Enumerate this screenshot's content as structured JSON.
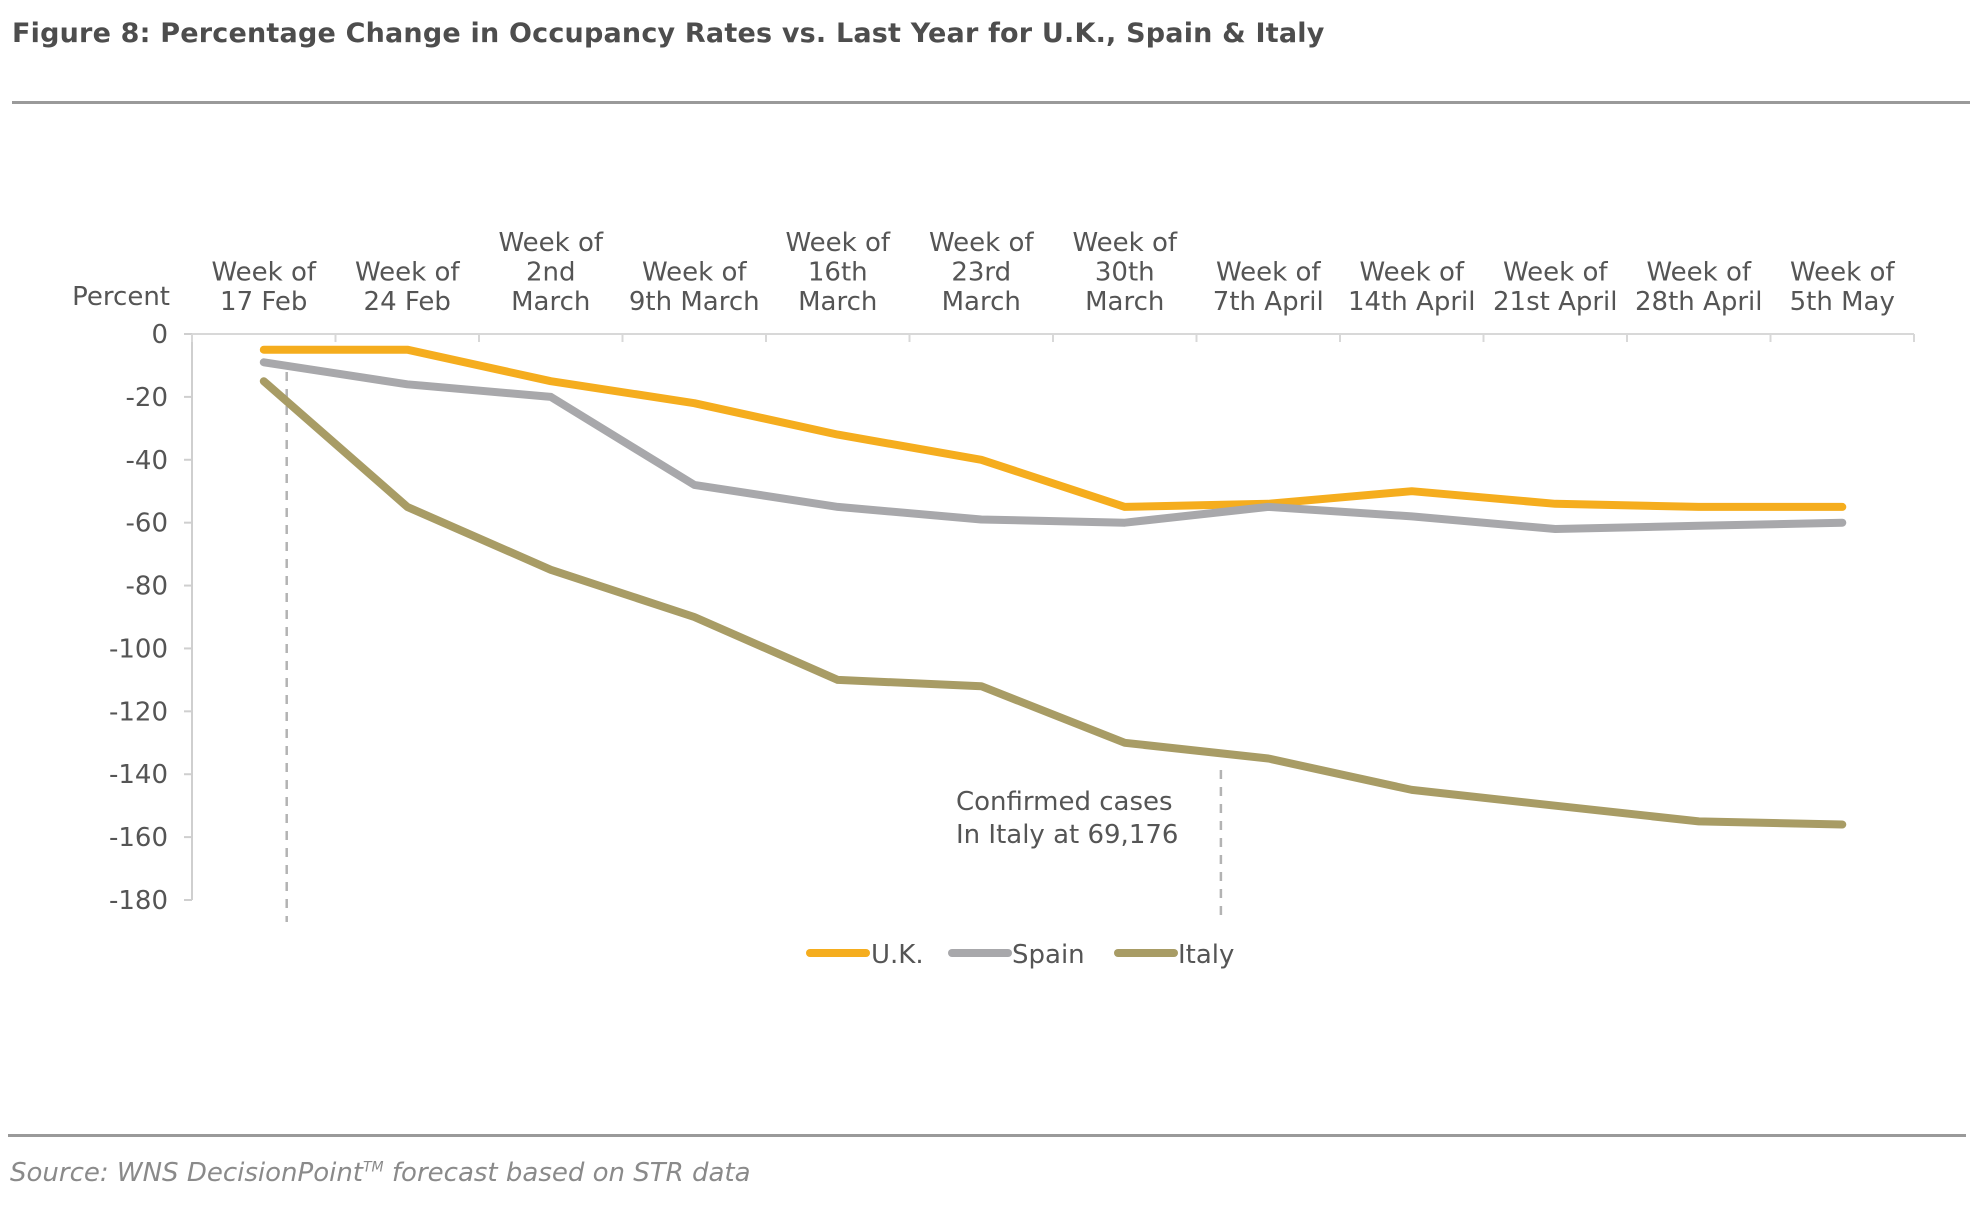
{
  "figure": {
    "title": "Figure 8: Percentage Change in Occupancy Rates vs. Last Year for U.K., Spain & Italy",
    "source_prefix": "Source: WNS DecisionPoint",
    "source_tm": "TM",
    "source_suffix": " forecast based on STR data"
  },
  "chart_data": {
    "type": "line",
    "ylabel": "Percent",
    "xlabel": "",
    "ylim": [
      -180,
      0
    ],
    "yticks": [
      0,
      -20,
      -40,
      -60,
      -80,
      -100,
      -120,
      -140,
      -160,
      -180
    ],
    "categories": [
      [
        "Week of",
        "17 Feb"
      ],
      [
        "Week of",
        "24 Feb"
      ],
      [
        "Week of",
        "2nd",
        "March"
      ],
      [
        "Week of",
        "9th March"
      ],
      [
        "Week of",
        "16th",
        "March"
      ],
      [
        "Week of",
        "23rd",
        "March"
      ],
      [
        "Week of",
        "30th",
        "March"
      ],
      [
        "Week of",
        "7th April"
      ],
      [
        "Week of",
        "14th April"
      ],
      [
        "Week of",
        "21st April"
      ],
      [
        "Week of",
        "28th April"
      ],
      [
        "Week of",
        "5th May"
      ]
    ],
    "series": [
      {
        "name": "U.K.",
        "color": "#f5ad1e",
        "values": [
          -5,
          -5,
          -15,
          -22,
          -32,
          -40,
          -55,
          -54,
          -50,
          -54,
          -55,
          -55
        ]
      },
      {
        "name": "Spain",
        "color": "#a8a8ab",
        "values": [
          -9,
          -16,
          -20,
          -48,
          -55,
          -59,
          -60,
          -55,
          -58,
          -62,
          -61,
          -60
        ]
      },
      {
        "name": "Italy",
        "color": "#a89c65",
        "values": [
          -15,
          -55,
          -75,
          -90,
          -110,
          -112,
          -130,
          -135,
          -145,
          -150,
          -155,
          -156
        ]
      }
    ],
    "annotation": {
      "lines": [
        "Confirmed cases",
        "In Italy at 69,176"
      ]
    },
    "legend": {
      "position": "bottom"
    },
    "grid": false
  }
}
